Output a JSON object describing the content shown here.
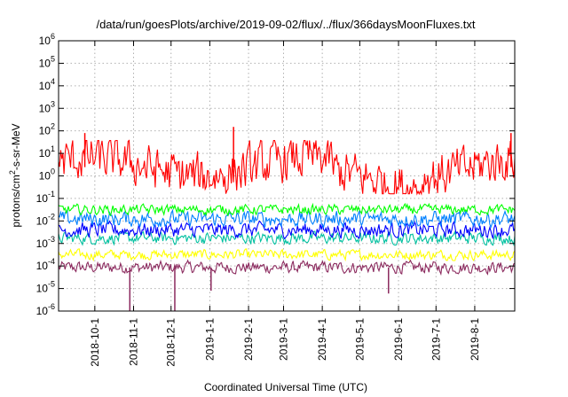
{
  "chart_data": {
    "type": "line",
    "title": "/data/run/goesPlots/archive/2019-09-02/flux/../flux/366daysMoonFluxes.txt",
    "xlabel": "Coordinated Universal Time (UTC)",
    "ylabel_parts": [
      "protons/cm",
      "2",
      "-s-sr-MeV"
    ],
    "y_scale": "log",
    "ylim_exp": [
      -6,
      6
    ],
    "y_ticks": [
      {
        "base": "10",
        "exp": "6"
      },
      {
        "base": "10",
        "exp": "5"
      },
      {
        "base": "10",
        "exp": "4"
      },
      {
        "base": "10",
        "exp": "3"
      },
      {
        "base": "10",
        "exp": "2"
      },
      {
        "base": "10",
        "exp": "1"
      },
      {
        "base": "10",
        "exp": "0"
      },
      {
        "base": "10",
        "exp": "-1"
      },
      {
        "base": "10",
        "exp": "-2"
      },
      {
        "base": "10",
        "exp": "-3"
      },
      {
        "base": "10",
        "exp": "-4"
      },
      {
        "base": "10",
        "exp": "-5"
      },
      {
        "base": "10",
        "exp": "-6"
      }
    ],
    "x_range": [
      "2018-09-02",
      "2019-09-02"
    ],
    "x_ticks": [
      "2018-10-1",
      "2018-11-1",
      "2018-12-1",
      "2019-1-1",
      "2019-2-1",
      "2019-3-1",
      "2019-4-1",
      "2019-5-1",
      "2019-6-1",
      "2019-7-1",
      "2019-8-1"
    ],
    "grid": true,
    "series": [
      {
        "color": "#8b2a5e",
        "typical_values": [
          5e-05,
          0.00015
        ],
        "dips": [
          {
            "date": "2018-10-29",
            "value": 1e-06
          },
          {
            "date": "2018-12-04",
            "value": 1e-06
          },
          {
            "date": "2019-01-02",
            "value": 8e-06
          },
          {
            "date": "2019-05-24",
            "value": 6e-06
          }
        ]
      },
      {
        "color": "#ffff00",
        "typical_values": [
          0.0002,
          0.0005
        ]
      },
      {
        "color": "#00c0a0",
        "typical_values": [
          0.001,
          0.003
        ]
      },
      {
        "color": "#0000ff",
        "typical_values": [
          0.002,
          0.008
        ]
      },
      {
        "color": "#0080ff",
        "typical_values": [
          0.006,
          0.025
        ]
      },
      {
        "color": "#00ff00",
        "typical_values": [
          0.02,
          0.05
        ]
      },
      {
        "color": "#ff0000",
        "typical_values": [
          0.3,
          20
        ],
        "peaks": [
          {
            "date": "2018-09-23",
            "value": 80
          },
          {
            "date": "2019-01-20",
            "value": 150
          },
          {
            "date": "2019-08-30",
            "value": 80
          }
        ]
      }
    ]
  },
  "colors": {
    "grid": "#b0b0b0",
    "axis": "#000000"
  }
}
